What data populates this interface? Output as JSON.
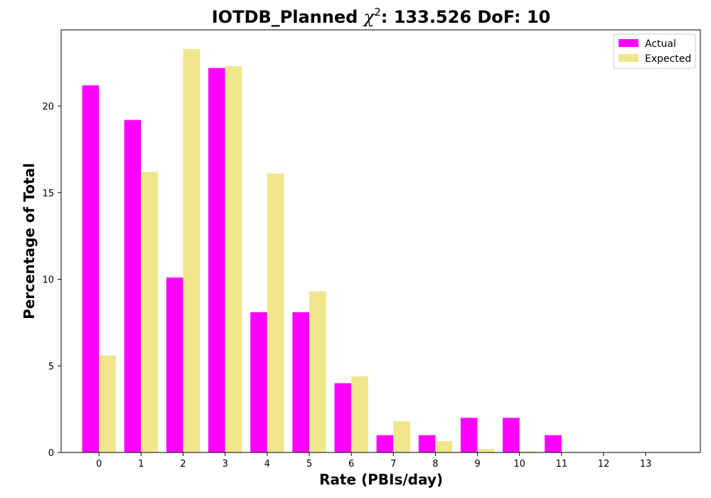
{
  "chart_data": {
    "type": "bar",
    "title_prefix": "IOTDB_Planned ",
    "title_chi": "χ",
    "title_sup": "2",
    "title_suffix": ": 133.526 DoF: 10",
    "xlabel": "Rate (PBIs/day)",
    "ylabel": "Percentage of Total",
    "categories": [
      "0",
      "1",
      "2",
      "3",
      "4",
      "5",
      "6",
      "7",
      "8",
      "9",
      "10",
      "11",
      "12",
      "13"
    ],
    "x": [
      0,
      1,
      2,
      3,
      4,
      5,
      6,
      7,
      8,
      9,
      10,
      11,
      12,
      13
    ],
    "xlim": [
      -0.9,
      14.3
    ],
    "ylim": [
      0,
      24.4
    ],
    "yticks": [
      0,
      5,
      10,
      15,
      20
    ],
    "ytick_labels": [
      "0",
      "5",
      "10",
      "15",
      "20"
    ],
    "legend_position": "top-right",
    "grid": false,
    "series": [
      {
        "name": "Actual",
        "color": "#ff00ff",
        "values": [
          21.2,
          19.2,
          10.1,
          22.2,
          8.1,
          8.1,
          4.0,
          1.0,
          1.0,
          2.0,
          2.0,
          1.0,
          0,
          0
        ]
      },
      {
        "name": "Expected",
        "color": "#f0e68c",
        "values": [
          5.6,
          16.2,
          23.3,
          22.3,
          16.1,
          9.3,
          4.4,
          1.8,
          0.65,
          0.2,
          0.07,
          0.02,
          0,
          0
        ]
      }
    ]
  }
}
